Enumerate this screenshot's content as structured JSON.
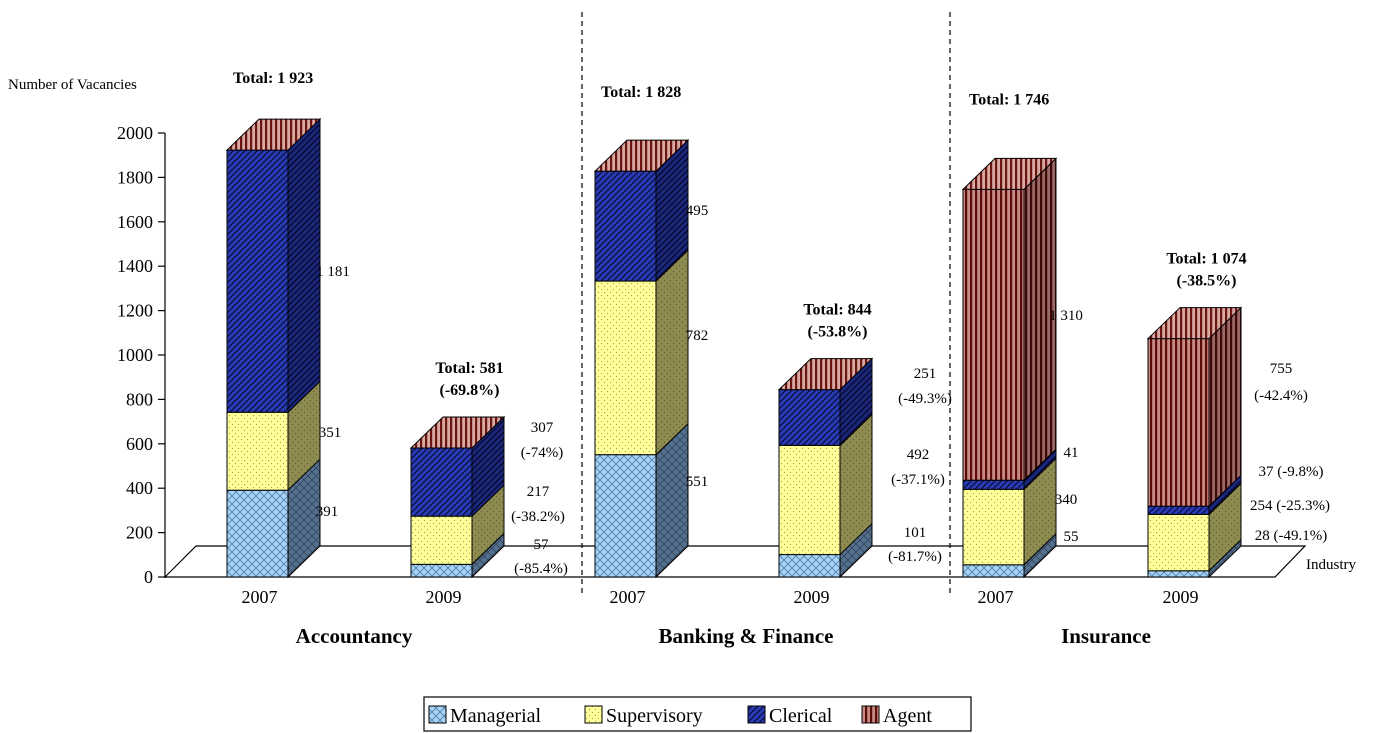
{
  "chart_data": {
    "type": "bar",
    "stacked": true,
    "three_d": true,
    "ylabel": "Number of Vacancies",
    "xlabel": "Industry",
    "ylim": [
      0,
      2000
    ],
    "yticks": [
      "0",
      "200",
      "400",
      "600",
      "800",
      "1000",
      "1200",
      "1400",
      "1600",
      "1800",
      "2000"
    ],
    "legend_position": "bottom",
    "groups": [
      {
        "industry": "Accountancy",
        "bars": [
          {
            "year": "2007",
            "total_label": "Total: 1 923",
            "total_change": "",
            "values": {
              "Managerial": 391,
              "Supervisory": 351,
              "Clerical": 1181,
              "Agent": 0
            },
            "labels": {
              "Managerial": [
                "391"
              ],
              "Supervisory": [
                "351"
              ],
              "Clerical": [
                "1 181"
              ]
            }
          },
          {
            "year": "2009",
            "total_label": "Total: 581",
            "total_change": "(-69.8%)",
            "values": {
              "Managerial": 57,
              "Supervisory": 217,
              "Clerical": 307,
              "Agent": 0
            },
            "labels": {
              "Managerial": [
                "57",
                "(-85.4%)"
              ],
              "Supervisory": [
                "217",
                "(-38.2%)"
              ],
              "Clerical": [
                "307",
                "(-74%)"
              ]
            }
          }
        ]
      },
      {
        "industry": "Banking & Finance",
        "bars": [
          {
            "year": "2007",
            "total_label": "Total: 1 828",
            "total_change": "",
            "values": {
              "Managerial": 551,
              "Supervisory": 782,
              "Clerical": 495,
              "Agent": 0
            },
            "labels": {
              "Managerial": [
                "551"
              ],
              "Supervisory": [
                "782"
              ],
              "Clerical": [
                "495"
              ]
            }
          },
          {
            "year": "2009",
            "total_label": "Total: 844",
            "total_change": "(-53.8%)",
            "values": {
              "Managerial": 101,
              "Supervisory": 492,
              "Clerical": 251,
              "Agent": 0
            },
            "labels": {
              "Managerial": [
                "101",
                "(-81.7%)"
              ],
              "Supervisory": [
                "492",
                "(-37.1%)"
              ],
              "Clerical": [
                "251",
                "(-49.3%)"
              ]
            }
          }
        ]
      },
      {
        "industry": "Insurance",
        "bars": [
          {
            "year": "2007",
            "total_label": "Total: 1 746",
            "total_change": "",
            "values": {
              "Managerial": 55,
              "Supervisory": 340,
              "Clerical": 41,
              "Agent": 1310
            },
            "labels": {
              "Managerial": [
                "55"
              ],
              "Supervisory": [
                "340"
              ],
              "Clerical": [
                "41"
              ],
              "Agent": [
                "1 310"
              ]
            }
          },
          {
            "year": "2009",
            "total_label": "Total: 1 074",
            "total_change": "(-38.5%)",
            "values": {
              "Managerial": 28,
              "Supervisory": 254,
              "Clerical": 37,
              "Agent": 755
            },
            "labels": {
              "Managerial": [
                "28 (-49.1%)"
              ],
              "Supervisory": [
                "254 (-25.3%)"
              ],
              "Clerical": [
                "37 (-9.8%)"
              ],
              "Agent": [
                "755",
                "(-42.4%)"
              ]
            }
          }
        ]
      }
    ],
    "series": [
      {
        "name": "Managerial",
        "color": "#a9d3f5",
        "pattern": "crosshatch"
      },
      {
        "name": "Supervisory",
        "color": "#ffff99",
        "pattern": "dots"
      },
      {
        "name": "Clerical",
        "color": "#2a3bb6",
        "pattern": "diagonal-stripes"
      },
      {
        "name": "Agent",
        "color": "#7a1a14",
        "pattern": "vertical-stripes"
      }
    ]
  }
}
